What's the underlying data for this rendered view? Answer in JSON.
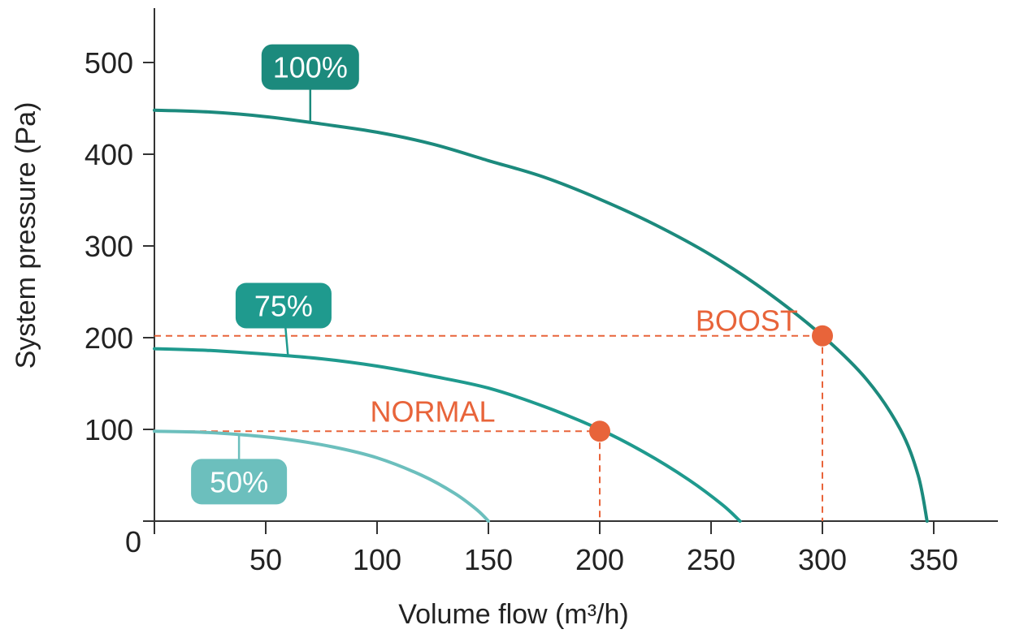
{
  "chart_data": {
    "type": "line",
    "title": "",
    "xlabel": "Volume flow (m³/h)",
    "ylabel": "System pressure (Pa)",
    "xlim": [
      0,
      380
    ],
    "ylim": [
      0,
      560
    ],
    "origin_label": "0",
    "x_ticks": [
      50,
      100,
      150,
      200,
      250,
      300,
      350
    ],
    "x_tick_labels": [
      "50",
      "100",
      "150",
      "200",
      "250",
      "300",
      "350"
    ],
    "y_ticks": [
      100,
      200,
      300,
      400,
      500
    ],
    "y_tick_labels": [
      "100",
      "200",
      "300",
      "400",
      "500"
    ],
    "grid": false,
    "series": [
      {
        "name": "100%",
        "color": "#1c8a7d",
        "label_anchor": {
          "x": 70,
          "y": 435
        },
        "label_pos": {
          "x": 70,
          "y": 495
        },
        "x": [
          0,
          25,
          50,
          75,
          100,
          125,
          150,
          175,
          200,
          225,
          250,
          275,
          300,
          320,
          335,
          343,
          347
        ],
        "values": [
          448,
          446,
          441,
          433,
          424,
          411,
          393,
          375,
          351,
          323,
          290,
          250,
          202,
          154,
          100,
          50,
          0
        ]
      },
      {
        "name": "75%",
        "color": "#1f9a8e",
        "label_anchor": {
          "x": 60,
          "y": 180
        },
        "label_pos": {
          "x": 58,
          "y": 235
        },
        "x": [
          0,
          25,
          50,
          75,
          100,
          125,
          150,
          175,
          200,
          220,
          240,
          255,
          263
        ],
        "values": [
          188,
          186,
          182,
          177,
          169,
          158,
          145,
          125,
          100,
          75,
          45,
          18,
          0
        ]
      },
      {
        "name": "50%",
        "color": "#6cbfbd",
        "label_anchor": {
          "x": 38,
          "y": 95
        },
        "label_pos": {
          "x": 38,
          "y": 43
        },
        "x": [
          0,
          20,
          40,
          60,
          80,
          100,
          120,
          135,
          145,
          150
        ],
        "values": [
          98,
          97,
          94,
          89,
          81,
          69,
          50,
          30,
          12,
          0
        ]
      }
    ],
    "operating_points": [
      {
        "label": "NORMAL",
        "x": 200,
        "y": 98,
        "label_x": 125,
        "label_y": 120,
        "color": "#e8643a"
      },
      {
        "label": "BOOST",
        "x": 300,
        "y": 202,
        "label_x": 266,
        "label_y": 219,
        "color": "#e8643a"
      }
    ]
  }
}
